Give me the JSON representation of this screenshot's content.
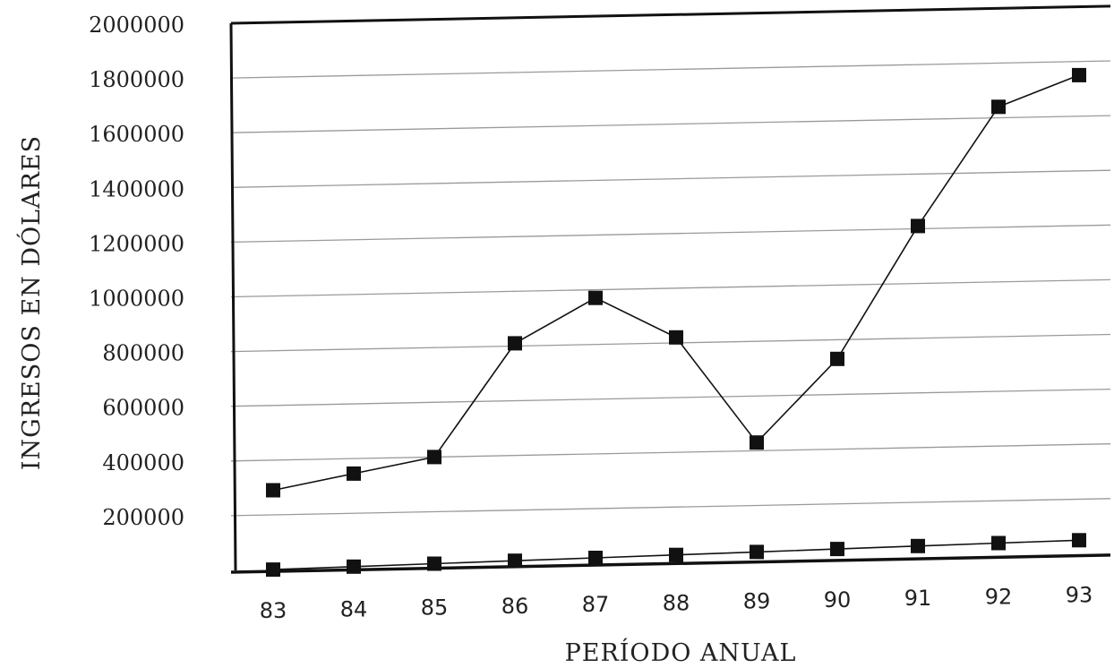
{
  "chart_data": {
    "type": "line",
    "title": "",
    "xlabel": "PERÍODO ANUAL",
    "ylabel": "INGRESOS EN DÓLARES",
    "categories": [
      "83",
      "84",
      "85",
      "86",
      "87",
      "88",
      "89",
      "90",
      "91",
      "92",
      "93"
    ],
    "y_ticks": [
      "2000000",
      "1800000",
      "1600000",
      "1400000",
      "1200000",
      "1000000",
      "800000",
      "600000",
      "400000",
      "200000"
    ],
    "ylim": [
      0,
      2000000
    ],
    "grid": true,
    "legend": "none",
    "series": [
      {
        "values": [
          290000,
          345000,
          400000,
          810000,
          970000,
          820000,
          430000,
          730000,
          1210000,
          1640000,
          1750000
        ],
        "color": "#111111",
        "marker": "square"
      },
      {
        "values": [
          0,
          5000,
          10000,
          15000,
          20000,
          25000,
          30000,
          35000,
          40000,
          45000,
          50000
        ],
        "color": "#111111",
        "marker": "square"
      }
    ]
  }
}
